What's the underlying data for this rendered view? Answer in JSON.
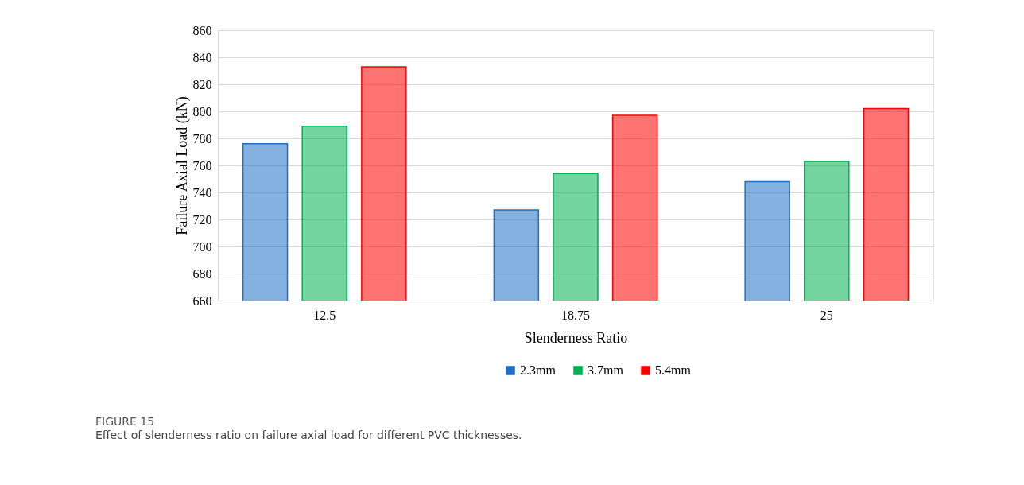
{
  "chart_data": {
    "type": "bar",
    "title": "FIGURE 15",
    "annotations": [
      "Effect of slenderness ratio on failure axial load for different PVC thicknesses."
    ],
    "xlabel": "Slenderness Ratio",
    "ylabel": "Failure Axial Load (kN)",
    "categories": [
      "12.5",
      "18.75",
      "25"
    ],
    "series": [
      {
        "name": "2.3mm",
        "color": "#1f6fc5",
        "values": [
          776,
          727,
          748
        ]
      },
      {
        "name": "3.7mm",
        "color": "#00b050",
        "values": [
          789,
          754,
          763
        ]
      },
      {
        "name": "5.4mm",
        "color": "#ff0000",
        "values": [
          833,
          797,
          802
        ]
      }
    ],
    "ylim": [
      660,
      860
    ],
    "yticks": [
      660,
      680,
      700,
      720,
      740,
      760,
      780,
      800,
      820,
      840,
      860
    ],
    "grid": "y",
    "legend": "bottom"
  }
}
